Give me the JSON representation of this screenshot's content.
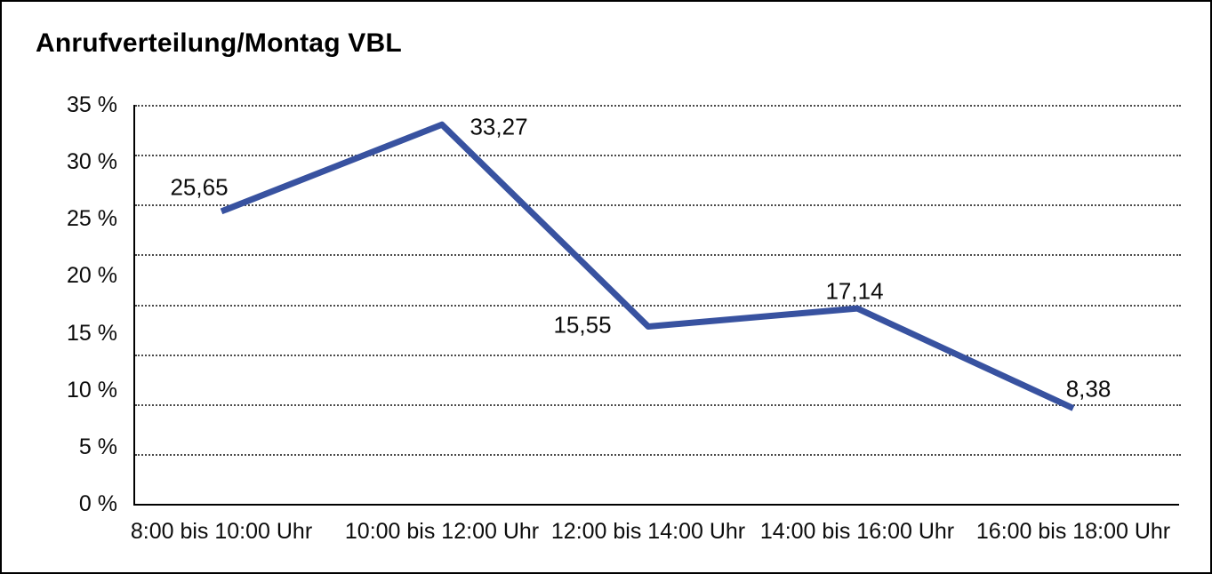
{
  "chart_data": {
    "type": "line",
    "title": "Anrufverteilung/Montag VBL",
    "categories": [
      "8:00 bis 10:00 Uhr",
      "10:00 bis 12:00 Uhr",
      "12:00 bis 14:00 Uhr",
      "14:00 bis 16:00 Uhr",
      "16:00 bis 18:00 Uhr"
    ],
    "values": [
      25.65,
      33.27,
      15.55,
      17.14,
      8.38
    ],
    "point_labels": [
      "25,65",
      "33,27",
      "15,55",
      "17,14",
      "8,38"
    ],
    "y_tick_labels": [
      "35 %",
      "30 %",
      "25 %",
      "20 %",
      "15 %",
      "10 %",
      "5 %",
      "0 %"
    ],
    "y_tick_values": [
      35,
      30,
      25,
      20,
      15,
      10,
      5,
      0
    ],
    "ylim": [
      0,
      35
    ],
    "grid_divisions": 8,
    "grid_style": "dotted-horizontal",
    "legend": "none",
    "xlabel": "",
    "ylabel": "",
    "line_color": "#3852A0",
    "axis_color": "#000000",
    "text_color": "#0c0c0c"
  }
}
